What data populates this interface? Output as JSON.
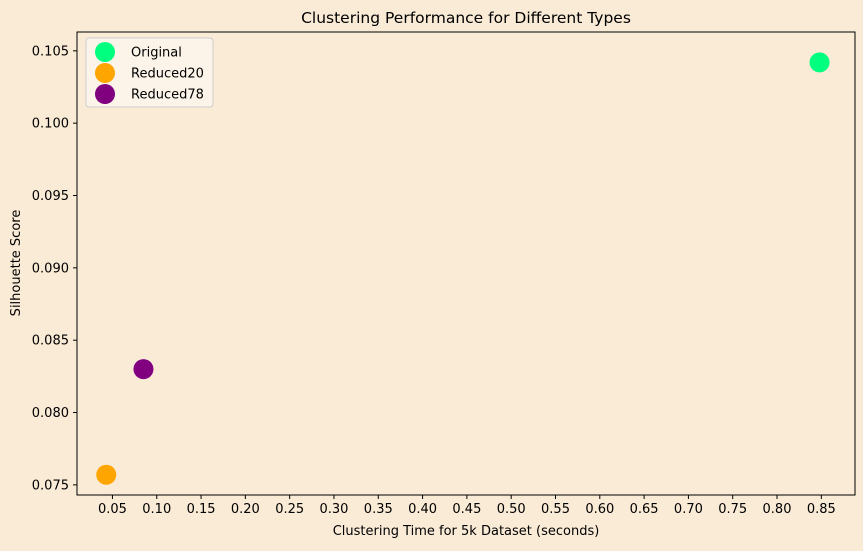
{
  "chart_data": {
    "type": "scatter",
    "title": "Clustering Performance for Different Types",
    "xlabel": "Clustering Time for 5k Dataset (seconds)",
    "ylabel": "Silhouette Score",
    "xlim": [
      0.01,
      0.888
    ],
    "ylim": [
      0.0743,
      0.1063
    ],
    "x_ticks": [
      0.05,
      0.1,
      0.15,
      0.2,
      0.25,
      0.3,
      0.35,
      0.4,
      0.45,
      0.5,
      0.55,
      0.6,
      0.65,
      0.7,
      0.75,
      0.8,
      0.85
    ],
    "x_tick_labels": [
      "0.05",
      "0.10",
      "0.15",
      "0.20",
      "0.25",
      "0.30",
      "0.35",
      "0.40",
      "0.45",
      "0.50",
      "0.55",
      "0.60",
      "0.65",
      "0.70",
      "0.75",
      "0.80",
      "0.85"
    ],
    "y_ticks": [
      0.075,
      0.08,
      0.085,
      0.09,
      0.095,
      0.1,
      0.105
    ],
    "y_tick_labels": [
      "0.075",
      "0.080",
      "0.085",
      "0.090",
      "0.095",
      "0.100",
      "0.105"
    ],
    "grid": false,
    "legend_position": "top-left",
    "series": [
      {
        "name": "Original",
        "color": "#00ff7f",
        "x": [
          0.848
        ],
        "y": [
          0.1042
        ]
      },
      {
        "name": "Reduced20",
        "color": "#ffa500",
        "x": [
          0.043
        ],
        "y": [
          0.0757
        ]
      },
      {
        "name": "Reduced78",
        "color": "#800080",
        "x": [
          0.085
        ],
        "y": [
          0.083
        ]
      }
    ]
  }
}
